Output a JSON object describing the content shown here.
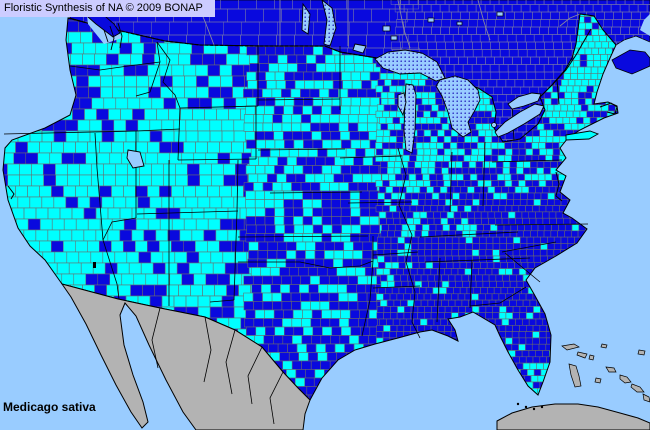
{
  "header": {
    "title": "Floristic Synthesis of NA © 2009 BONAP"
  },
  "footer": {
    "species": "Medicago sativa"
  },
  "map": {
    "colors": {
      "ocean": "#99CCFF",
      "lake": "#99CCFF",
      "lake_dots": "#2B2BC0",
      "canada_land": "#0909DE",
      "us_county_absent": "#0909DE",
      "us_county_present": "#00FFFF",
      "mexico_land": "#B3B3B3",
      "island_land": "#B3B3B3",
      "county_border": "#6B6B6B",
      "canada_border": "#8888A0",
      "state_border": "#000000",
      "coast_border": "#000000",
      "titlebar_bg": "#CCCCFF",
      "label_text": "#000000"
    }
  }
}
